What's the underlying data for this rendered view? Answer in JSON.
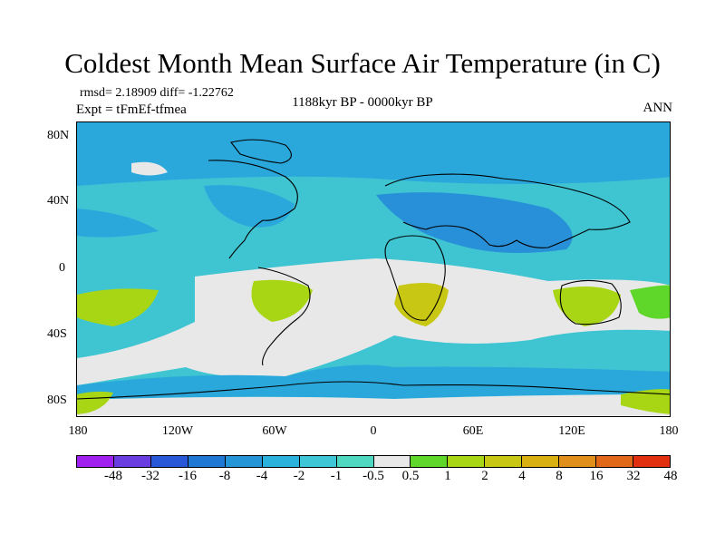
{
  "title": "Coldest Month Mean Surface Air Temperature (in C)",
  "stats": "rmsd= 2.18909 diff= -1.22762",
  "experiment": "Expt = tFmEf-tfmea",
  "period": "1188kyr BP - 0000kyr BP",
  "season": "ANN",
  "lat_ticks": [
    "80N",
    "40N",
    "0",
    "40S",
    "80S"
  ],
  "lon_ticks": [
    "180",
    "120W",
    "60W",
    "0",
    "60E",
    "120E",
    "180"
  ],
  "colorbar": {
    "colors": [
      "#a020f0",
      "#6a3de0",
      "#2858d8",
      "#1f78d4",
      "#2496d8",
      "#2bb2dc",
      "#3ec6d6",
      "#4ed8c2",
      "#e8e8e8",
      "#5ed62a",
      "#a8d614",
      "#c8c814",
      "#d8b010",
      "#e0901a",
      "#e06818",
      "#e03010"
    ],
    "labels": [
      "-48",
      "-32",
      "-16",
      "-8",
      "-4",
      "-2",
      "-1",
      "-0.5",
      "0.5",
      "1",
      "2",
      "4",
      "8",
      "16",
      "32",
      "48"
    ]
  },
  "map_colors": {
    "ocean_base": "#3fc4d2",
    "cool_band": "#2aa8dc",
    "cold": "#2890d8",
    "neutral": "#e8e8e8",
    "warm_light": "#5ed62a",
    "warm": "#a8d614",
    "warmer": "#c8c814",
    "coast": "#000000"
  }
}
